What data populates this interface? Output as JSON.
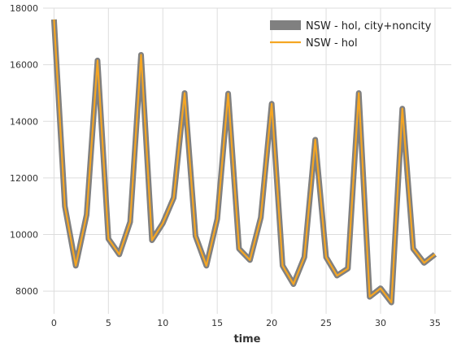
{
  "chart_data": {
    "type": "line",
    "title": "",
    "xlabel": "time",
    "ylabel": "",
    "xlim": [
      -1,
      36.5
    ],
    "ylim": [
      7200,
      18000
    ],
    "xticks": [
      0,
      5,
      10,
      15,
      20,
      25,
      30,
      35
    ],
    "yticks": [
      8000,
      10000,
      12000,
      14000,
      16000,
      18000
    ],
    "grid": true,
    "legend_position": "top-right",
    "x": [
      0,
      1,
      2,
      3,
      4,
      5,
      6,
      7,
      8,
      9,
      10,
      11,
      12,
      13,
      14,
      15,
      16,
      17,
      18,
      19,
      20,
      21,
      22,
      23,
      24,
      25,
      26,
      27,
      28,
      29,
      30,
      31,
      32,
      33,
      34,
      35
    ],
    "series": [
      {
        "name": "NSW - hol, city+noncity",
        "color": "#808080",
        "style": "thick",
        "values": [
          17600,
          11000,
          8900,
          10700,
          16150,
          9850,
          9300,
          10450,
          16350,
          9800,
          10400,
          11300,
          15000,
          9950,
          8900,
          10550,
          14980,
          9500,
          9100,
          10600,
          14620,
          8900,
          8250,
          9200,
          13350,
          9200,
          8550,
          8800,
          15000,
          7800,
          8100,
          7600,
          14450,
          9500,
          9000,
          9300
        ]
      },
      {
        "name": "NSW - hol",
        "color": "#f5a623",
        "style": "thin",
        "values": [
          17600,
          11000,
          8900,
          10700,
          16150,
          9850,
          9300,
          10450,
          16350,
          9800,
          10400,
          11300,
          15000,
          9950,
          8900,
          10550,
          14980,
          9500,
          9100,
          10600,
          14620,
          8900,
          8250,
          9200,
          13350,
          9200,
          8550,
          8800,
          15000,
          7800,
          8100,
          7600,
          14450,
          9500,
          9000,
          9300
        ]
      }
    ]
  }
}
